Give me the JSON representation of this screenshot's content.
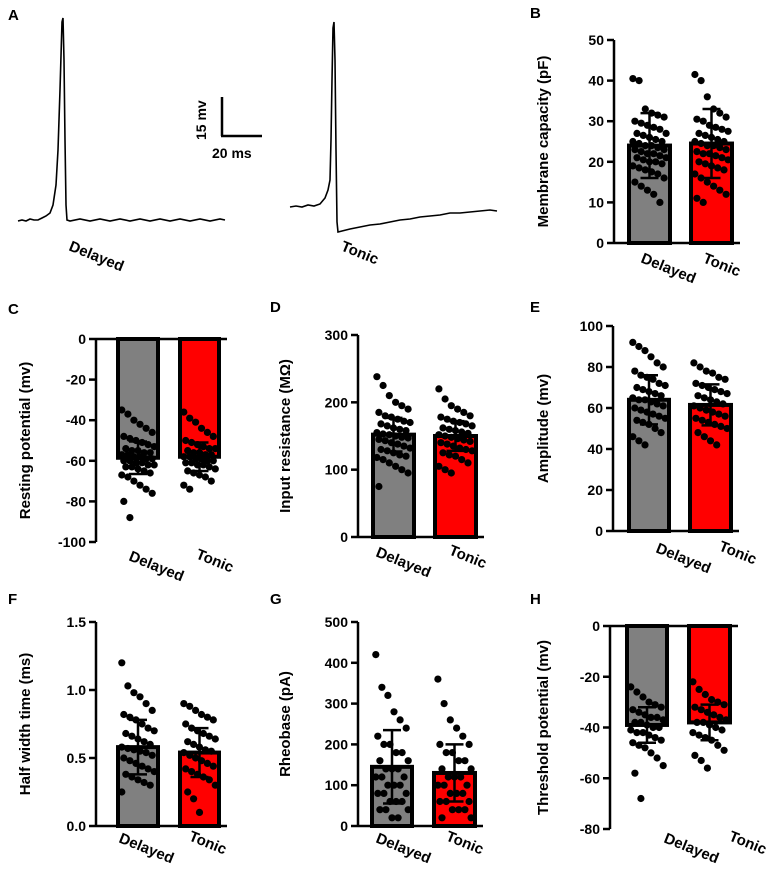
{
  "colors": {
    "delayed": "#808080",
    "tonic": "#ff0000",
    "axis": "#000000",
    "dot": "#000000"
  },
  "trace_panel": {
    "letter": "A",
    "scale_bar": {
      "vertical": "15 mv",
      "horizontal": "20 ms"
    },
    "traces": [
      {
        "label": "Delayed",
        "shape": "delayed-spike"
      },
      {
        "label": "Tonic",
        "shape": "tonic-spike"
      }
    ]
  },
  "chart_data": [
    {
      "id": "B",
      "letter": "B",
      "type": "bar",
      "ylabel": "Membrane capacity (pF)",
      "ylim": [
        0,
        50
      ],
      "yticks": [
        0,
        10,
        20,
        30,
        40,
        50
      ],
      "yticklabels": [
        "0",
        "10",
        "20",
        "30",
        "40",
        "50"
      ],
      "categories": [
        "Delayed",
        "Tonic"
      ],
      "values": [
        24,
        24.5
      ],
      "error": [
        8,
        8.5
      ],
      "points": [
        [
          40.5,
          40,
          33,
          32,
          31.5,
          31,
          30,
          29.5,
          29,
          28.5,
          28,
          27,
          27,
          26.5,
          26,
          25.5,
          25,
          25,
          24.5,
          24,
          24,
          23.5,
          23,
          23,
          22.5,
          22,
          22,
          21.5,
          21,
          21,
          20.5,
          20,
          20,
          19.5,
          19,
          18.5,
          18,
          17.5,
          17,
          16,
          15,
          14,
          13,
          12,
          10
        ],
        [
          41.5,
          40,
          36,
          33,
          32,
          31,
          30.5,
          30,
          29,
          28.5,
          28,
          27.5,
          27,
          26.5,
          26,
          25.5,
          25,
          25,
          24.5,
          24,
          24,
          23.5,
          23,
          22.5,
          22,
          22,
          21.5,
          21,
          20.5,
          20,
          19.5,
          19,
          18.5,
          18,
          17,
          16,
          15,
          14,
          13,
          12,
          11,
          10
        ]
      ]
    },
    {
      "id": "C",
      "letter": "C",
      "type": "bar",
      "ylabel": "Resting potential (mv)",
      "ylim": [
        -100,
        0
      ],
      "yticks": [
        0,
        -20,
        -40,
        -60,
        -80,
        -100
      ],
      "yticklabels": [
        "0",
        "-20",
        "-40",
        "-60",
        "-80",
        "-100"
      ],
      "categories": [
        "Delayed",
        "Tonic"
      ],
      "values": [
        -58.5,
        -58
      ],
      "error": [
        8,
        7
      ],
      "points": [
        [
          -35,
          -37,
          -40,
          -42,
          -44,
          -46,
          -48,
          -49,
          -50,
          -51,
          -52,
          -53,
          -54,
          -55,
          -55,
          -56,
          -56,
          -57,
          -57,
          -58,
          -58,
          -59,
          -59,
          -60,
          -60,
          -61,
          -61,
          -62,
          -62,
          -63,
          -63,
          -64,
          -65,
          -66,
          -67,
          -68,
          -70,
          -72,
          -74,
          -76,
          -80,
          -88
        ],
        [
          -36,
          -39,
          -41,
          -44,
          -46,
          -48,
          -50,
          -51,
          -52,
          -53,
          -54,
          -54,
          -55,
          -56,
          -56,
          -57,
          -57,
          -58,
          -58,
          -59,
          -59,
          -60,
          -60,
          -61,
          -61,
          -62,
          -62,
          -63,
          -64,
          -65,
          -66,
          -67,
          -68,
          -70,
          -72,
          -74
        ]
      ]
    },
    {
      "id": "D",
      "letter": "D",
      "type": "bar",
      "ylabel": "Input resistance (MΩ)",
      "ylim": [
        0,
        300
      ],
      "yticks": [
        0,
        100,
        200,
        300
      ],
      "yticklabels": [
        "0",
        "100",
        "200",
        "300"
      ],
      "categories": [
        "Delayed",
        "Tonic"
      ],
      "values": [
        152,
        150
      ],
      "error": [
        25,
        22
      ],
      "points": [
        [
          238,
          225,
          210,
          200,
          195,
          190,
          185,
          180,
          178,
          175,
          172,
          170,
          168,
          165,
          162,
          160,
          158,
          155,
          153,
          152,
          150,
          148,
          147,
          145,
          143,
          140,
          138,
          135,
          132,
          130,
          128,
          125,
          122,
          120,
          118,
          115,
          110,
          105,
          100,
          95,
          75
        ],
        [
          220,
          205,
          195,
          190,
          185,
          180,
          178,
          175,
          172,
          170,
          168,
          165,
          162,
          160,
          158,
          156,
          154,
          152,
          150,
          148,
          146,
          144,
          142,
          140,
          138,
          135,
          132,
          130,
          128,
          125,
          122,
          120,
          115,
          110,
          105,
          100,
          95
        ]
      ]
    },
    {
      "id": "E",
      "letter": "E",
      "type": "bar",
      "ylabel": "Amplitude (mv)",
      "ylim": [
        0,
        100
      ],
      "yticks": [
        0,
        20,
        40,
        60,
        80,
        100
      ],
      "yticklabels": [
        "0",
        "20",
        "40",
        "60",
        "80",
        "100"
      ],
      "categories": [
        "Delayed",
        "Tonic"
      ],
      "values": [
        64,
        61.5
      ],
      "error": [
        12,
        10
      ],
      "points": [
        [
          92,
          90,
          88,
          85,
          82,
          80,
          78,
          76,
          75,
          74,
          72,
          71,
          70,
          69,
          68,
          67,
          66,
          65,
          64,
          64,
          63,
          62,
          61,
          60,
          59,
          58,
          57,
          56,
          55,
          54,
          53,
          52,
          50,
          48,
          46,
          44,
          42
        ],
        [
          82,
          80,
          78,
          77,
          75,
          74,
          72,
          71,
          70,
          69,
          68,
          67,
          66,
          65,
          64,
          63,
          62,
          61,
          60,
          59,
          58,
          57,
          56,
          55,
          54,
          53,
          52,
          51,
          50,
          48,
          46,
          44,
          42
        ]
      ]
    },
    {
      "id": "F",
      "letter": "F",
      "type": "bar",
      "ylabel": "Half width time (ms)",
      "ylim": [
        0,
        1.5
      ],
      "yticks": [
        0,
        0.5,
        1.0,
        1.5
      ],
      "yticklabels": [
        "0.0",
        "0.5",
        "1.0",
        "1.5"
      ],
      "categories": [
        "Delayed",
        "Tonic"
      ],
      "values": [
        0.58,
        0.54
      ],
      "error": [
        0.2,
        0.18
      ],
      "points": [
        [
          1.2,
          1.03,
          0.98,
          0.95,
          0.9,
          0.85,
          0.82,
          0.8,
          0.78,
          0.75,
          0.72,
          0.7,
          0.68,
          0.66,
          0.64,
          0.62,
          0.6,
          0.58,
          0.57,
          0.56,
          0.55,
          0.54,
          0.52,
          0.5,
          0.48,
          0.46,
          0.44,
          0.42,
          0.4,
          0.38,
          0.36,
          0.34,
          0.32,
          0.3,
          0.25
        ],
        [
          0.9,
          0.88,
          0.85,
          0.82,
          0.8,
          0.78,
          0.75,
          0.72,
          0.7,
          0.68,
          0.66,
          0.64,
          0.62,
          0.6,
          0.58,
          0.56,
          0.55,
          0.54,
          0.52,
          0.5,
          0.48,
          0.46,
          0.44,
          0.42,
          0.4,
          0.38,
          0.36,
          0.34,
          0.3,
          0.25,
          0.2,
          0.1
        ]
      ]
    },
    {
      "id": "G",
      "letter": "G",
      "type": "bar",
      "ylabel": "Rheobase (pA)",
      "ylim": [
        0,
        500
      ],
      "yticks": [
        0,
        100,
        200,
        300,
        400,
        500
      ],
      "yticklabels": [
        "0",
        "100",
        "200",
        "300",
        "400",
        "500"
      ],
      "categories": [
        "Delayed",
        "Tonic"
      ],
      "values": [
        145,
        130
      ],
      "error": [
        90,
        70
      ],
      "points": [
        [
          420,
          340,
          320,
          280,
          260,
          240,
          220,
          200,
          200,
          180,
          180,
          160,
          160,
          140,
          140,
          140,
          120,
          120,
          120,
          100,
          100,
          100,
          80,
          80,
          80,
          60,
          60,
          60,
          40,
          40,
          40,
          20,
          20
        ],
        [
          360,
          300,
          260,
          240,
          220,
          200,
          200,
          180,
          180,
          160,
          160,
          140,
          140,
          120,
          120,
          120,
          100,
          100,
          100,
          80,
          80,
          80,
          60,
          60,
          60,
          40,
          40,
          40,
          20,
          20
        ]
      ]
    },
    {
      "id": "H",
      "letter": "H",
      "type": "bar",
      "ylabel": "Threshold potential (mv)",
      "ylim": [
        -80,
        0
      ],
      "yticks": [
        0,
        -20,
        -40,
        -60,
        -80
      ],
      "yticklabels": [
        "0",
        "-20",
        "-40",
        "-60",
        "-80"
      ],
      "categories": [
        "Delayed",
        "Tonic"
      ],
      "values": [
        -39,
        -38
      ],
      "error": [
        7,
        7
      ],
      "points": [
        [
          -24,
          -26,
          -28,
          -30,
          -31,
          -32,
          -33,
          -34,
          -35,
          -36,
          -36,
          -37,
          -38,
          -38,
          -39,
          -40,
          -40,
          -41,
          -42,
          -42,
          -43,
          -44,
          -45,
          -46,
          -47,
          -48,
          -50,
          -52,
          -55,
          -58,
          -68
        ],
        [
          -22,
          -25,
          -27,
          -29,
          -30,
          -31,
          -32,
          -33,
          -34,
          -35,
          -36,
          -37,
          -38,
          -38,
          -39,
          -40,
          -41,
          -42,
          -43,
          -44,
          -45,
          -47,
          -49,
          -51,
          -53,
          -56
        ]
      ]
    }
  ]
}
